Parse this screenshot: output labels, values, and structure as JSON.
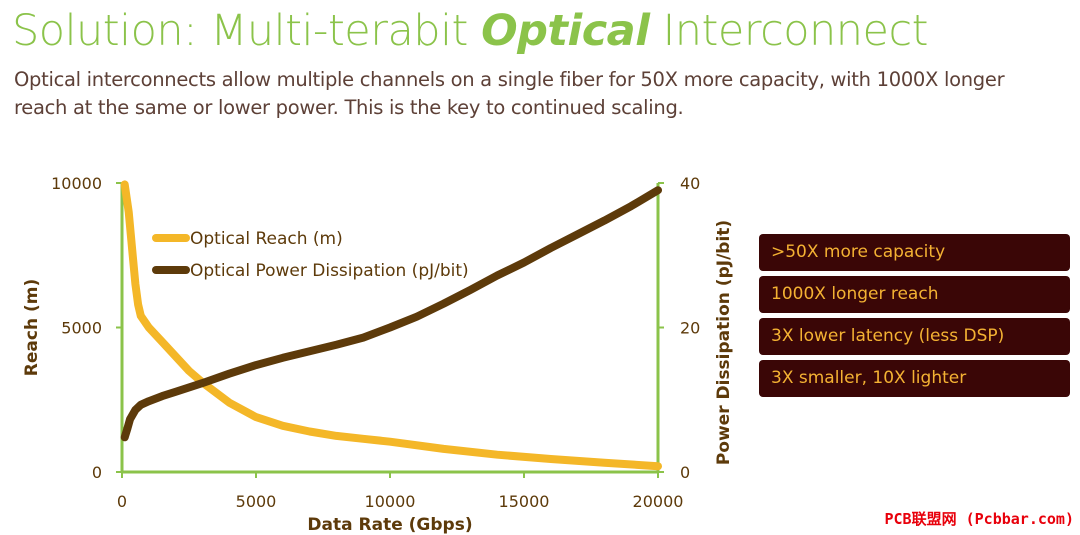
{
  "slide": {
    "title_pre": "Solution: Multi-terabit ",
    "title_accent": "Optical",
    "title_post": " Interconnect",
    "subtitle": "Optical interconnects allow multiple channels on a single fiber for 50X more capacity, with 1000X longer reach at the same or lower power. This is the key to continued scaling."
  },
  "callouts": [
    ">50X more capacity",
    "1000X longer reach",
    "3X lower latency (less DSP)",
    "3X smaller, 10X lighter"
  ],
  "watermark": "PCB联盟网 (Pcbbar.com)",
  "colors": {
    "title": "#8bc34a",
    "axis_lines": "#8bc34a",
    "reach_series": "#f4b728",
    "power_series": "#5d3a0a",
    "callout_bg": "#3a0606",
    "callout_text": "#f4b233",
    "watermark": "#e8000b"
  },
  "chart_data": {
    "type": "line",
    "xlabel": "Data Rate (Gbps)",
    "ylabel": "Reach (m)",
    "y2label": "Power Dissipation (pJ/bit)",
    "xlim": [
      0,
      20000
    ],
    "ylim": [
      0,
      10000
    ],
    "y2lim": [
      0,
      40
    ],
    "x_ticks": [
      "0",
      "5000",
      "10000",
      "15000",
      "20000"
    ],
    "y_ticks": [
      "0",
      "5000",
      "10000"
    ],
    "y2_ticks": [
      "0",
      "20",
      "40"
    ],
    "grid": false,
    "legend_position": "top-left",
    "series": [
      {
        "name": "Optical Reach (m)",
        "axis": "left",
        "x": [
          100,
          250,
          400,
          500,
          600,
          700,
          1000,
          1500,
          2000,
          2500,
          3000,
          4000,
          5000,
          6000,
          7000,
          8000,
          9000,
          10000,
          12000,
          14000,
          16000,
          18000,
          20000
        ],
        "y": [
          9950,
          9000,
          7500,
          6500,
          5800,
          5400,
          5000,
          4500,
          4000,
          3500,
          3100,
          2400,
          1900,
          1600,
          1400,
          1250,
          1150,
          1050,
          800,
          600,
          450,
          320,
          200
        ]
      },
      {
        "name": "Optical Power Dissipation (pJ/bit)",
        "axis": "right",
        "x": [
          100,
          200,
          300,
          500,
          700,
          1000,
          1500,
          2000,
          3000,
          4000,
          5000,
          6000,
          7000,
          8000,
          9000,
          10000,
          11000,
          12000,
          13000,
          14000,
          15000,
          16000,
          17000,
          18000,
          19000,
          20000
        ],
        "y": [
          4.8,
          6.0,
          7.3,
          8.6,
          9.3,
          9.8,
          10.5,
          11.1,
          12.3,
          13.6,
          14.8,
          15.8,
          16.7,
          17.6,
          18.6,
          20.0,
          21.5,
          23.3,
          25.2,
          27.2,
          29.0,
          31.0,
          32.9,
          34.8,
          36.8,
          39.0
        ]
      }
    ]
  }
}
